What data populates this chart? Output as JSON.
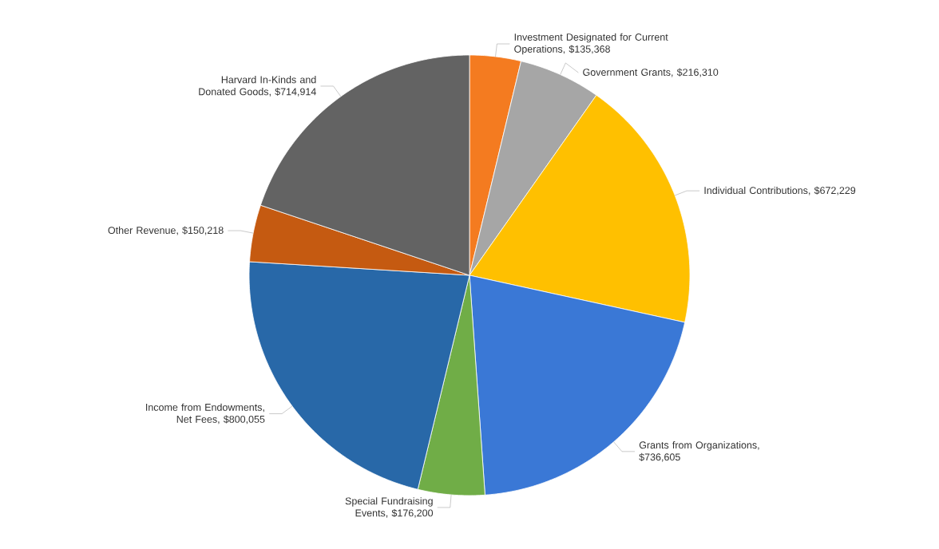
{
  "chart_data": {
    "type": "pie",
    "categories": [
      "Investment Designated for Current Operations",
      "Government Grants",
      "Individual Contributions",
      "Grants from Organizations",
      "Special Fundraising Events",
      "Income from Endowments, Net Fees",
      "Other Revenue",
      "Harvard In-Kinds and Donated Goods"
    ],
    "values": [
      135368,
      216310,
      672229,
      736605,
      176200,
      800055,
      150218,
      714914
    ],
    "value_labels": [
      ", $135,368",
      ", $216,310",
      ", $672,229",
      ", $736,605",
      ", $176,200",
      ", $800,055",
      ", $150,218",
      ", $714,914"
    ],
    "colors": [
      "#f47b20",
      "#a6a6a6",
      "#ffc000",
      "#3a78d6",
      "#70ad47",
      "#2868a8",
      "#c55a11",
      "#636363"
    ]
  }
}
